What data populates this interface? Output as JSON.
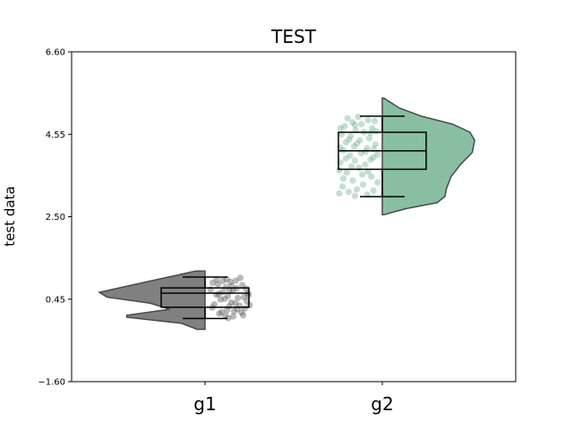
{
  "chart_data": {
    "type": "raincloud",
    "title": "TEST",
    "xlabel": "",
    "ylabel": "test data",
    "ylim": [
      -1.6,
      6.6
    ],
    "yticks": [
      "6.60",
      "4.55",
      "2.50",
      "0.45",
      "-1.60"
    ],
    "categories": [
      "g1",
      "g2"
    ],
    "series": [
      {
        "category": "g1",
        "color": "#808080",
        "box": {
          "whisker_low": -0.03,
          "q1": 0.25,
          "median": 0.6,
          "q3": 0.73,
          "whisker_high": 1.0
        },
        "density": [
          [
            -0.3,
            0.1
          ],
          [
            -0.15,
            0.3
          ],
          [
            0.0,
            1.0
          ],
          [
            0.05,
            1.0
          ],
          [
            0.2,
            0.45
          ],
          [
            0.35,
            0.7
          ],
          [
            0.5,
            1.25
          ],
          [
            0.62,
            1.35
          ],
          [
            0.75,
            1.05
          ],
          [
            0.88,
            0.75
          ],
          [
            1.05,
            0.35
          ],
          [
            1.15,
            0.12
          ]
        ],
        "points": [
          [
            0.3,
            1.02
          ],
          [
            0.05,
            0.86
          ],
          [
            0.95,
            0.46
          ],
          [
            0.12,
            0.82
          ],
          [
            0.56,
            0.21
          ],
          [
            0.78,
            0.58
          ],
          [
            0.22,
            0.9
          ],
          [
            0.9,
            0.37
          ],
          [
            0.48,
            0.73
          ],
          [
            0.67,
            0.61
          ],
          [
            0.35,
            0.67
          ],
          [
            0.04,
            0.43
          ],
          [
            0.82,
            0.25
          ],
          [
            0.6,
            0.98
          ],
          [
            0.15,
            0.64
          ],
          [
            0.71,
            0.93
          ],
          [
            0.44,
            0.31
          ],
          [
            0.27,
            0.52
          ],
          [
            0.98,
            0.79
          ],
          [
            0.53,
            0.49
          ],
          [
            0.09,
            0.28
          ],
          [
            0.86,
            0.12
          ],
          [
            0.4,
            0.95
          ],
          [
            0.63,
            0.36
          ],
          [
            0.2,
            0.72
          ],
          [
            0.75,
            0.44
          ],
          [
            0.32,
            0.16
          ],
          [
            0.5,
            0.88
          ],
          [
            0.91,
            0.68
          ],
          [
            0.13,
            0.34
          ],
          [
            0.69,
            0.07
          ],
          [
            0.37,
            0.57
          ],
          [
            0.58,
            0.27
          ],
          [
            0.24,
            0.11
          ],
          [
            0.8,
            0.84
          ],
          [
            0.46,
            0.41
          ],
          [
            0.02,
            0.62
          ],
          [
            0.94,
            0.22
          ],
          [
            0.29,
            0.77
          ],
          [
            0.65,
            0.53
          ],
          [
            -0.02,
            0.5
          ],
          [
            0.72,
            0.7
          ],
          [
            0.18,
            0.47
          ],
          [
            0.55,
            0.99
          ],
          [
            0.88,
            0.55
          ]
        ]
      },
      {
        "category": "g2",
        "color": "#55a47b",
        "box": {
          "whisker_low": 3.0,
          "q1": 3.68,
          "median": 4.14,
          "q3": 4.6,
          "whisker_high": 5.0
        },
        "density": [
          [
            2.55,
            0.02
          ],
          [
            2.7,
            0.3
          ],
          [
            2.85,
            0.7
          ],
          [
            3.0,
            0.8
          ],
          [
            3.2,
            0.82
          ],
          [
            3.5,
            0.88
          ],
          [
            3.8,
            1.0
          ],
          [
            4.1,
            1.15
          ],
          [
            4.4,
            1.18
          ],
          [
            4.6,
            1.12
          ],
          [
            4.8,
            0.9
          ],
          [
            5.0,
            0.5
          ],
          [
            5.2,
            0.22
          ],
          [
            5.45,
            0.02
          ]
        ],
        "points": [
          [
            3.05,
            0.3
          ],
          [
            3.12,
            0.75
          ],
          [
            3.18,
            0.55
          ],
          [
            3.25,
            0.9
          ],
          [
            3.3,
            0.4
          ],
          [
            3.4,
            0.65
          ],
          [
            3.5,
            0.2
          ],
          [
            3.6,
            0.8
          ],
          [
            3.72,
            0.5
          ],
          [
            3.8,
            0.35
          ],
          [
            3.85,
            0.95
          ],
          [
            3.9,
            0.6
          ],
          [
            3.98,
            0.15
          ],
          [
            4.02,
            0.72
          ],
          [
            4.08,
            0.45
          ],
          [
            4.15,
            0.88
          ],
          [
            4.2,
            0.3
          ],
          [
            4.25,
            0.62
          ],
          [
            4.3,
            0.1
          ],
          [
            4.35,
            0.82
          ],
          [
            4.4,
            0.48
          ],
          [
            4.45,
            0.25
          ],
          [
            4.5,
            0.7
          ],
          [
            4.55,
            0.92
          ],
          [
            4.6,
            0.38
          ],
          [
            4.65,
            0.58
          ],
          [
            4.7,
            0.18
          ],
          [
            4.75,
            0.85
          ],
          [
            4.8,
            0.44
          ],
          [
            4.85,
            0.66
          ],
          [
            4.9,
            0.28
          ],
          [
            4.95,
            0.78
          ],
          [
            4.98,
            0.52
          ],
          [
            3.35,
            0.05
          ],
          [
            3.66,
            0.98
          ],
          [
            3.02,
            0.6
          ],
          [
            3.92,
            0.22
          ],
          [
            4.22,
            0.96
          ],
          [
            4.62,
            0.08
          ],
          [
            4.88,
            0.12
          ],
          [
            3.55,
            0.42
          ],
          [
            4.12,
            0.34
          ],
          [
            4.42,
            0.74
          ],
          [
            3.75,
            0.68
          ],
          [
            4.05,
            0.05
          ],
          [
            3.45,
            0.88
          ],
          [
            4.7,
            0.95
          ],
          [
            3.15,
            0.15
          ],
          [
            4.32,
            0.55
          ],
          [
            3.95,
            0.82
          ],
          [
            4.58,
            0.22
          ],
          [
            3.62,
            0.28
          ],
          [
            4.78,
            0.6
          ],
          [
            3.08,
            0.98
          ],
          [
            4.18,
            0.14
          ]
        ]
      }
    ]
  }
}
